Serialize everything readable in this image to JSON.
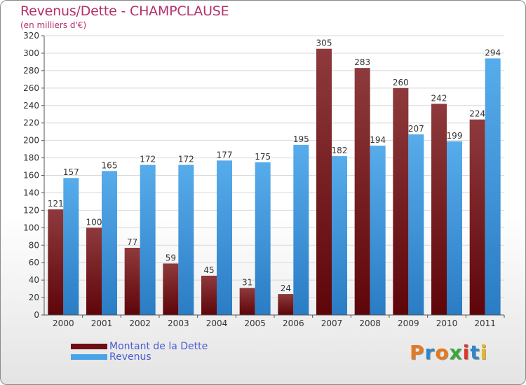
{
  "title": "Revenus/Dette - CHAMPCLAUSE",
  "subtitle": "(en milliers d'€)",
  "legend": {
    "debt_label": "Montant de la Dette",
    "revenue_label": "Revenus"
  },
  "logo": {
    "text": "Proxiti",
    "colors": [
      "#e8781e",
      "#2f86c9",
      "#e8781e",
      "#3aa83a",
      "#d9382f",
      "#2f86c9",
      "#e8b81e"
    ]
  },
  "colors": {
    "debt": "#6b0f14",
    "debt_top": "#8e3a3c",
    "revenue": "#4aa3e6",
    "revenue_bottom": "#2a7cc4",
    "title": "#b5306b"
  },
  "chart_data": {
    "type": "bar",
    "categories": [
      "2000",
      "2001",
      "2002",
      "2003",
      "2004",
      "2005",
      "2006",
      "2007",
      "2008",
      "2009",
      "2010",
      "2011"
    ],
    "series": [
      {
        "name": "Montant de la Dette",
        "values": [
          121,
          100,
          77,
          59,
          45,
          31,
          24,
          305,
          283,
          260,
          242,
          224
        ]
      },
      {
        "name": "Revenus",
        "values": [
          157,
          165,
          172,
          172,
          177,
          175,
          195,
          182,
          194,
          207,
          199,
          294
        ]
      }
    ],
    "yticks": [
      "0",
      "20",
      "40",
      "60",
      "80",
      "100",
      "120",
      "140",
      "160",
      "180",
      "200",
      "220",
      "240",
      "260",
      "280",
      "300",
      "320"
    ],
    "ylim": [
      0,
      320
    ],
    "grid": "horizontal"
  }
}
